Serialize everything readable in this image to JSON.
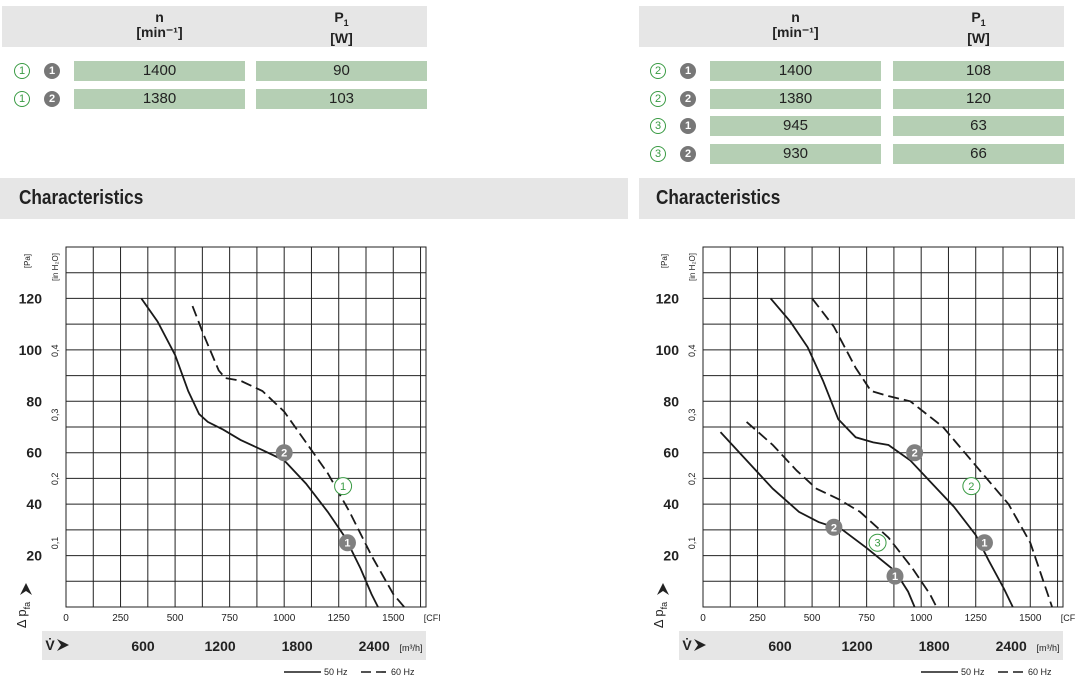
{
  "tables": [
    {
      "col_n": "n",
      "col_n_unit": "[min⁻¹]",
      "col_p": "P",
      "col_p_sub": "1",
      "col_p_unit": "[W]",
      "rows": [
        {
          "curve": "1",
          "stage": "1",
          "n": "1400",
          "p": "90"
        },
        {
          "curve": "1",
          "stage": "2",
          "n": "1380",
          "p": "103"
        }
      ]
    },
    {
      "col_n": "n",
      "col_n_unit": "[min⁻¹]",
      "col_p": "P",
      "col_p_sub": "1",
      "col_p_unit": "[W]",
      "rows": [
        {
          "curve": "2",
          "stage": "1",
          "n": "1400",
          "p": "108"
        },
        {
          "curve": "2",
          "stage": "2",
          "n": "1380",
          "p": "120"
        },
        {
          "curve": "3",
          "stage": "1",
          "n": "945",
          "p": "63"
        },
        {
          "curve": "3",
          "stage": "2",
          "n": "930",
          "p": "66"
        }
      ]
    }
  ],
  "section_title": "Characteristics",
  "chart_data": [
    {
      "type": "line",
      "xlabel_unit_cfm": "[CFM]",
      "xlabel_unit_m3h": "[m³/h]",
      "ylabel_unit_pa": "[Pa]",
      "ylabel_unit_inh2o": "[in H₂O]",
      "ylabel_symbol": "Δ p",
      "ylabel_sub": "fa",
      "xlabel_symbol": "V̇",
      "xlim": [
        0,
        1650
      ],
      "ylim": [
        0,
        140
      ],
      "grid": true,
      "cfm_ticks": [
        "0",
        "250",
        "500",
        "750",
        "1000",
        "1250",
        "1500"
      ],
      "cfm_values": [
        0,
        250,
        500,
        750,
        1000,
        1250,
        1500
      ],
      "m3h_ticks": [
        "600",
        "1200",
        "1800",
        "2400"
      ],
      "m3h_values": [
        600,
        1200,
        1800,
        2400
      ],
      "pa_ticks": [
        "20",
        "40",
        "60",
        "80",
        "100",
        "120"
      ],
      "pa_values": [
        20,
        40,
        60,
        80,
        100,
        120
      ],
      "inh2o_ticks": [
        "0,1",
        "0,2",
        "0,3",
        "0,4"
      ],
      "inh2o_values": [
        0.1,
        0.2,
        0.3,
        0.4
      ],
      "legend": {
        "solid": "50 Hz",
        "dashed": "60 Hz"
      },
      "series": [
        {
          "style": "solid",
          "points": [
            [
              345,
              120
            ],
            [
              420,
              111
            ],
            [
              500,
              98
            ],
            [
              560,
              84
            ],
            [
              610,
              75
            ],
            [
              650,
              72
            ],
            [
              720,
              69
            ],
            [
              800,
              65
            ],
            [
              900,
              61
            ],
            [
              1000,
              57
            ],
            [
              1100,
              48
            ],
            [
              1200,
              37
            ],
            [
              1280,
              27
            ],
            [
              1350,
              15
            ],
            [
              1400,
              5
            ],
            [
              1430,
              0
            ]
          ]
        },
        {
          "style": "dashed",
          "points": [
            [
              580,
              117
            ],
            [
              630,
              106
            ],
            [
              700,
              92
            ],
            [
              730,
              89
            ],
            [
              800,
              88
            ],
            [
              900,
              84
            ],
            [
              1000,
              76
            ],
            [
              1100,
              64
            ],
            [
              1200,
              52
            ],
            [
              1300,
              37
            ],
            [
              1400,
              20
            ],
            [
              1500,
              5
            ],
            [
              1550,
              0
            ]
          ]
        }
      ],
      "markers": [
        {
          "label": "2",
          "kind": "stage",
          "x": 1000,
          "y": 60
        },
        {
          "label": "1",
          "kind": "curve",
          "x": 1270,
          "y": 47
        },
        {
          "label": "1",
          "kind": "stage",
          "x": 1290,
          "y": 25
        }
      ]
    },
    {
      "type": "line",
      "xlabel_unit_cfm": "[CFM]",
      "xlabel_unit_m3h": "[m³/h]",
      "ylabel_unit_pa": "[Pa]",
      "ylabel_unit_inh2o": "[in H₂O]",
      "ylabel_symbol": "Δ p",
      "ylabel_sub": "fa",
      "xlabel_symbol": "V̇",
      "xlim": [
        0,
        1650
      ],
      "ylim": [
        0,
        140
      ],
      "grid": true,
      "cfm_ticks": [
        "0",
        "250",
        "500",
        "750",
        "1000",
        "1250",
        "1500"
      ],
      "cfm_values": [
        0,
        250,
        500,
        750,
        1000,
        1250,
        1500
      ],
      "m3h_ticks": [
        "600",
        "1200",
        "1800",
        "2400"
      ],
      "m3h_values": [
        600,
        1200,
        1800,
        2400
      ],
      "pa_ticks": [
        "20",
        "40",
        "60",
        "80",
        "100",
        "120"
      ],
      "pa_values": [
        20,
        40,
        60,
        80,
        100,
        120
      ],
      "inh2o_ticks": [
        "0,1",
        "0,2",
        "0,3",
        "0,4"
      ],
      "inh2o_values": [
        0.1,
        0.2,
        0.3,
        0.4
      ],
      "legend": {
        "solid": "50 Hz",
        "dashed": "60 Hz"
      },
      "series": [
        {
          "style": "solid",
          "points": [
            [
              310,
              120
            ],
            [
              400,
              111
            ],
            [
              480,
              101
            ],
            [
              550,
              88
            ],
            [
              620,
              73
            ],
            [
              700,
              66
            ],
            [
              780,
              64
            ],
            [
              850,
              63
            ],
            [
              950,
              57
            ],
            [
              1050,
              48
            ],
            [
              1150,
              39
            ],
            [
              1250,
              28
            ],
            [
              1310,
              18
            ],
            [
              1380,
              7
            ],
            [
              1420,
              0
            ]
          ]
        },
        {
          "style": "dashed",
          "points": [
            [
              500,
              120
            ],
            [
              600,
              109
            ],
            [
              700,
              93
            ],
            [
              770,
              84
            ],
            [
              850,
              82
            ],
            [
              950,
              80
            ],
            [
              1100,
              70
            ],
            [
              1250,
              55
            ],
            [
              1400,
              40
            ],
            [
              1500,
              25
            ],
            [
              1560,
              10
            ],
            [
              1600,
              0
            ]
          ]
        },
        {
          "style": "solid",
          "points": [
            [
              80,
              68
            ],
            [
              200,
              57
            ],
            [
              320,
              46
            ],
            [
              440,
              37
            ],
            [
              530,
              33
            ],
            [
              640,
              30
            ],
            [
              750,
              23
            ],
            [
              880,
              14
            ],
            [
              940,
              6
            ],
            [
              970,
              0
            ]
          ]
        },
        {
          "style": "dashed",
          "points": [
            [
              200,
              72
            ],
            [
              320,
              63
            ],
            [
              430,
              53
            ],
            [
              520,
              46
            ],
            [
              620,
              42
            ],
            [
              720,
              37
            ],
            [
              850,
              27
            ],
            [
              960,
              15
            ],
            [
              1040,
              5
            ],
            [
              1070,
              0
            ]
          ]
        }
      ],
      "markers": [
        {
          "label": "2",
          "kind": "stage",
          "x": 970,
          "y": 60
        },
        {
          "label": "2",
          "kind": "curve",
          "x": 1230,
          "y": 47
        },
        {
          "label": "1",
          "kind": "stage",
          "x": 1290,
          "y": 25
        },
        {
          "label": "2",
          "kind": "stage",
          "x": 600,
          "y": 31
        },
        {
          "label": "3",
          "kind": "curve",
          "x": 800,
          "y": 25
        },
        {
          "label": "1",
          "kind": "stage",
          "x": 880,
          "y": 12
        }
      ]
    }
  ]
}
